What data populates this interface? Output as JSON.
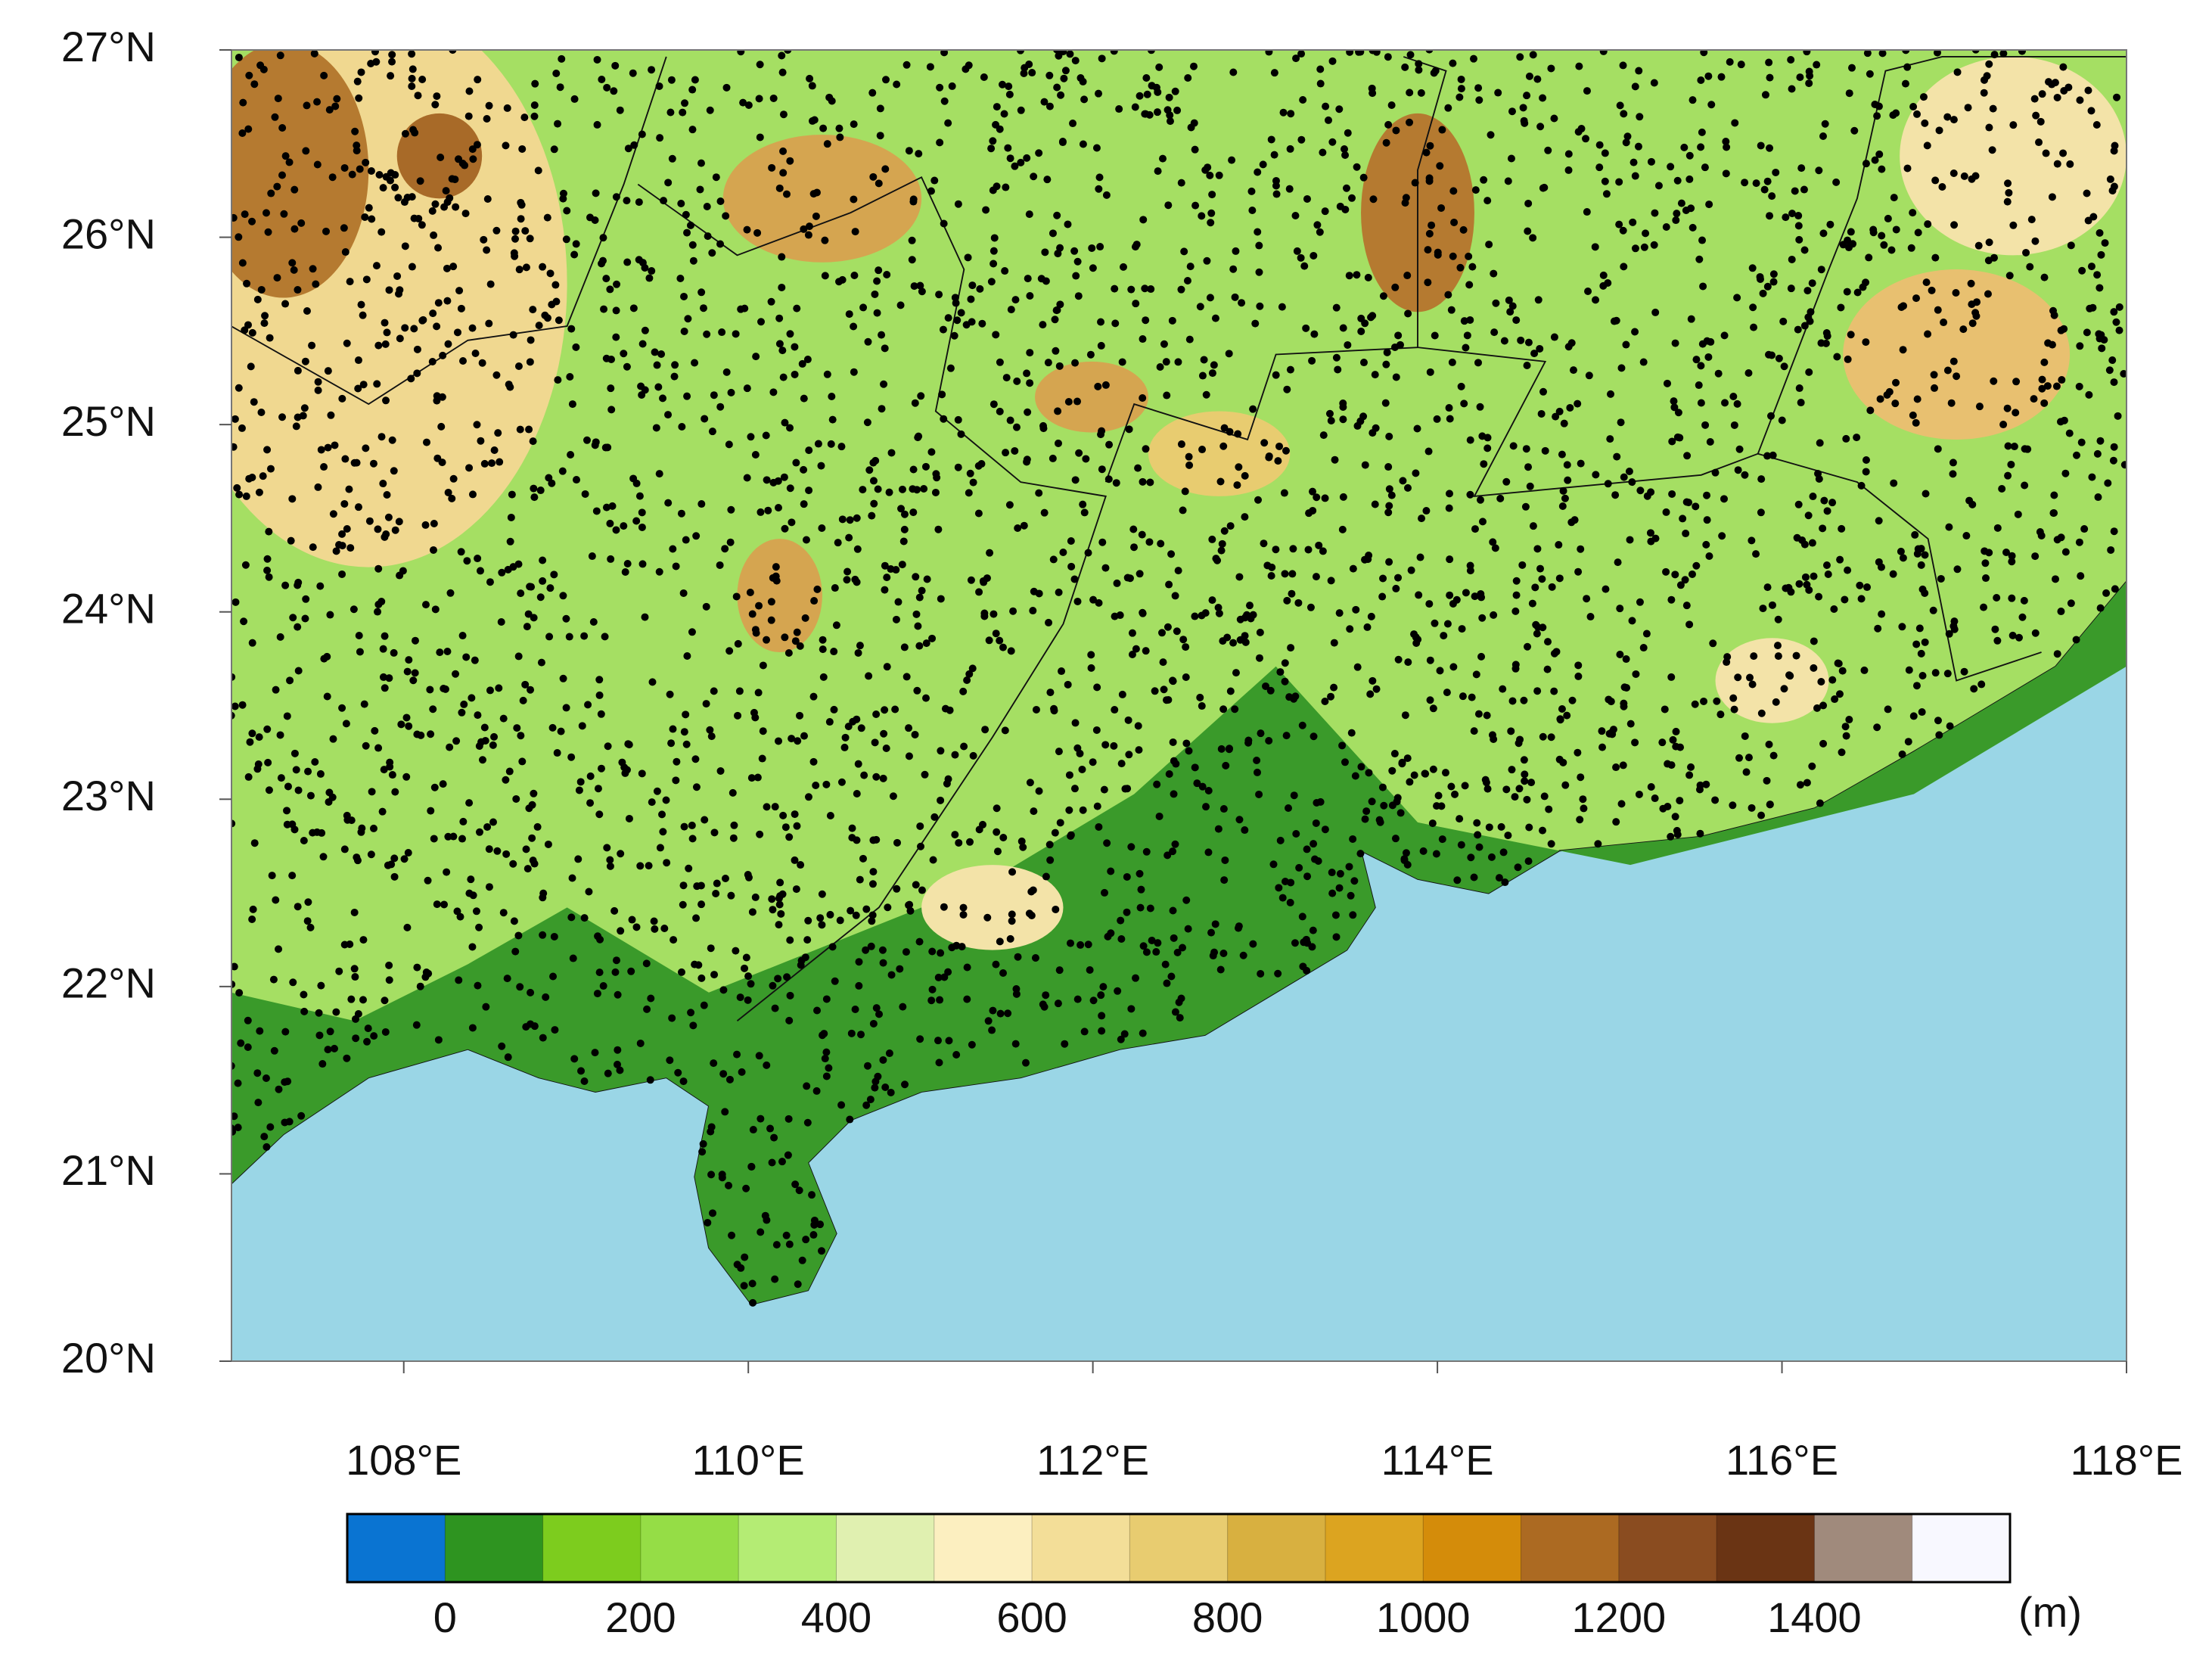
{
  "chart_data": {
    "type": "map",
    "xlim": [
      107,
      118
    ],
    "xticks": [
      {
        "value": 108,
        "label": "108°E"
      },
      {
        "value": 110,
        "label": "110°E"
      },
      {
        "value": 112,
        "label": "112°E"
      },
      {
        "value": 114,
        "label": "114°E"
      },
      {
        "value": 116,
        "label": "116°E"
      },
      {
        "value": 118,
        "label": "118°E"
      }
    ],
    "ylim": [
      20,
      27
    ],
    "yticks": [
      {
        "value": 20,
        "label": "20°N"
      },
      {
        "value": 21,
        "label": "21°N"
      },
      {
        "value": 22,
        "label": "22°N"
      },
      {
        "value": 23,
        "label": "23°N"
      },
      {
        "value": 24,
        "label": "24°N"
      },
      {
        "value": 25,
        "label": "25°N"
      },
      {
        "value": 26,
        "label": "26°N"
      },
      {
        "value": 27,
        "label": "27°N"
      }
    ],
    "colorbar": {
      "colors": [
        "#0a74d2",
        "#2e9420",
        "#7dcc1e",
        "#95dd46",
        "#b4ec74",
        "#e0f0b0",
        "#fcefc0",
        "#f3de98",
        "#e8cc70",
        "#d8b040",
        "#dca420",
        "#d48c0a",
        "#ac6a22",
        "#8a4c20",
        "#6a3414",
        "#a08a7c",
        "#f8f8ff"
      ],
      "boundaries": [
        0,
        100,
        200,
        300,
        400,
        500,
        600,
        700,
        800,
        900,
        1000,
        1100,
        1200,
        1300,
        1400,
        1500
      ],
      "ticks": [
        0,
        200,
        400,
        600,
        800,
        1000,
        1200,
        1400
      ],
      "unit": "(m)"
    }
  }
}
